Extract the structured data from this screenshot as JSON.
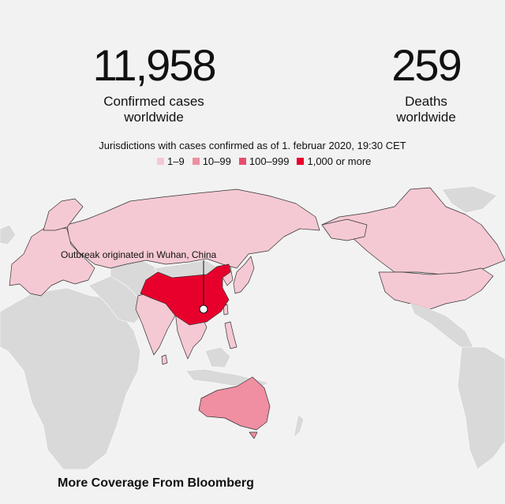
{
  "stats": {
    "cases_value": "11,958",
    "cases_label_1": "Confirmed cases",
    "cases_label_2": "worldwide",
    "deaths_value": "259",
    "deaths_label_1": "Deaths",
    "deaths_label_2": "worldwide"
  },
  "subtitle": "Jurisdictions with cases confirmed as of 1. februar 2020, 19:30 CET",
  "legend": [
    {
      "label": "1–9",
      "color": "#f5c9d3"
    },
    {
      "label": "10–99",
      "color": "#f08ea2"
    },
    {
      "label": "100–999",
      "color": "#e5506d"
    },
    {
      "label": "1,000 or more",
      "color": "#e8002c"
    }
  ],
  "map": {
    "annotation": "Outbreak originated in Wuhan, China",
    "colors": {
      "none": "#d9d9d9",
      "tier1": "#f5c9d3",
      "tier2": "#f08ea2",
      "tier4": "#e8002c",
      "border": "#333333"
    }
  },
  "footer": "More Coverage From Bloomberg"
}
